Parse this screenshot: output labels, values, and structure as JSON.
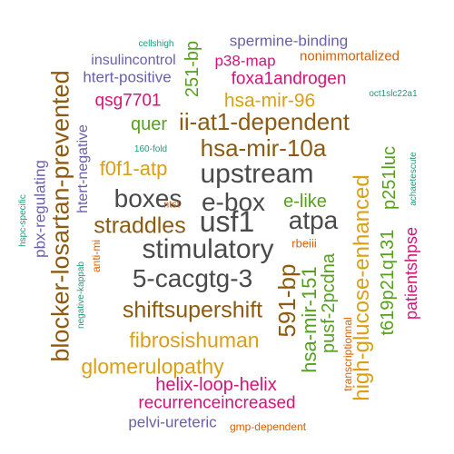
{
  "colors": {
    "gray": "#4a4a4a",
    "brown": "#8c5a10",
    "gold": "#d9a016",
    "green": "#56a01e",
    "purple": "#6a5fad",
    "magenta": "#d6137a",
    "orange": "#d95f02",
    "teal": "#1b9e77"
  },
  "words": [
    {
      "text": "stimulatory",
      "color": "gray",
      "vertical": false
    },
    {
      "text": "usf1",
      "color": "gray",
      "vertical": false
    },
    {
      "text": "upstream",
      "color": "gray",
      "vertical": false
    },
    {
      "text": "boxes",
      "color": "gray",
      "vertical": false
    },
    {
      "text": "e-box",
      "color": "gray",
      "vertical": false
    },
    {
      "text": "atpa",
      "color": "gray",
      "vertical": false
    },
    {
      "text": "5-cacgtg-3",
      "color": "gray",
      "vertical": false
    },
    {
      "text": "hsa-mir-10a",
      "color": "brown",
      "vertical": false
    },
    {
      "text": "ii-at1-dependent",
      "color": "brown",
      "vertical": false
    },
    {
      "text": "straddles",
      "color": "brown",
      "vertical": false
    },
    {
      "text": "shiftsupershift",
      "color": "brown",
      "vertical": false
    },
    {
      "text": "blocker-losartan-prevented",
      "color": "brown",
      "vertical": true
    },
    {
      "text": "591-bp",
      "color": "brown",
      "vertical": true
    },
    {
      "text": "high-glucose-enhanced",
      "color": "gold",
      "vertical": true
    },
    {
      "text": "fibrosishuman",
      "color": "gold",
      "vertical": false
    },
    {
      "text": "glomerulopathy",
      "color": "gold",
      "vertical": false
    },
    {
      "text": "f0f1-atp",
      "color": "gold",
      "vertical": false
    },
    {
      "text": "hsa-mir-96",
      "color": "gold",
      "vertical": false
    },
    {
      "text": "251-bp",
      "color": "green",
      "vertical": true
    },
    {
      "text": "quer",
      "color": "green",
      "vertical": false
    },
    {
      "text": "e-like",
      "color": "green",
      "vertical": false
    },
    {
      "text": "hsa-mir-151",
      "color": "green",
      "vertical": true
    },
    {
      "text": "pusf-2pcdna",
      "color": "green",
      "vertical": true
    },
    {
      "text": "t619p21q131",
      "color": "green",
      "vertical": true
    },
    {
      "text": "p251luc",
      "color": "green",
      "vertical": true
    },
    {
      "text": "spermine-binding",
      "color": "purple",
      "vertical": false
    },
    {
      "text": "insulincontrol",
      "color": "purple",
      "vertical": false
    },
    {
      "text": "htert-positive",
      "color": "purple",
      "vertical": false
    },
    {
      "text": "htert-negative",
      "color": "purple",
      "vertical": true
    },
    {
      "text": "pbx-regulating",
      "color": "purple",
      "vertical": true
    },
    {
      "text": "pelvi-ureteric",
      "color": "purple",
      "vertical": false
    },
    {
      "text": "p38-map",
      "color": "magenta",
      "vertical": false
    },
    {
      "text": "foxa1androgen",
      "color": "magenta",
      "vertical": false
    },
    {
      "text": "qsg7701",
      "color": "magenta",
      "vertical": false
    },
    {
      "text": "helix-loop-helix",
      "color": "magenta",
      "vertical": false
    },
    {
      "text": "recurrenceincreased",
      "color": "magenta",
      "vertical": false
    },
    {
      "text": "patientshpse",
      "color": "magenta",
      "vertical": true
    },
    {
      "text": "nonimmortalized",
      "color": "orange",
      "vertical": false
    },
    {
      "text": "ntst",
      "color": "orange",
      "vertical": false
    },
    {
      "text": "rbeiii",
      "color": "orange",
      "vertical": false
    },
    {
      "text": "anti-mi",
      "color": "orange",
      "vertical": true
    },
    {
      "text": "transcriptionnal",
      "color": "orange",
      "vertical": true
    },
    {
      "text": "gmp-dependent",
      "color": "orange",
      "vertical": false
    },
    {
      "text": "cellshigh",
      "color": "teal",
      "vertical": false
    },
    {
      "text": "oct1slc22a1",
      "color": "teal",
      "vertical": false
    },
    {
      "text": "160-fold",
      "color": "teal",
      "vertical": false
    },
    {
      "text": "hspc-specific",
      "color": "teal",
      "vertical": true
    },
    {
      "text": "negative-kappab",
      "color": "teal",
      "vertical": true
    },
    {
      "text": "achaetescute",
      "color": "teal",
      "vertical": true
    }
  ]
}
